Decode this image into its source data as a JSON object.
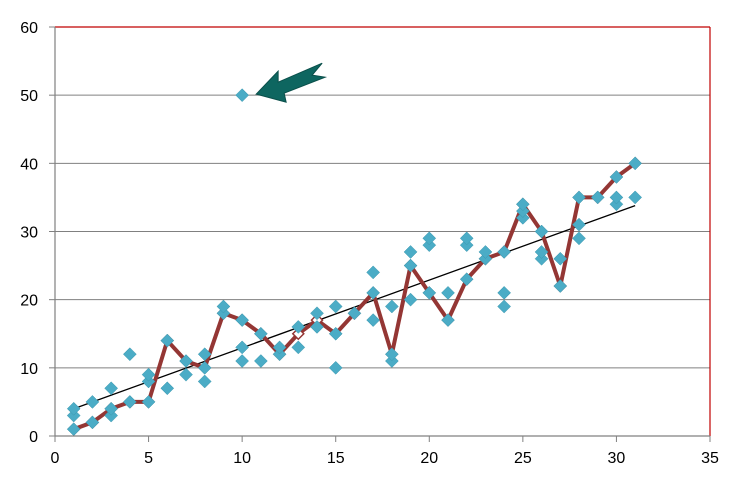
{
  "chart_data": {
    "type": "scatter",
    "title": "",
    "xlabel": "",
    "ylabel": "",
    "xlim": [
      0,
      35
    ],
    "ylim": [
      0,
      60
    ],
    "x_ticks": [
      "0",
      "5",
      "10",
      "15",
      "20",
      "25",
      "30",
      "35"
    ],
    "y_ticks": [
      "0",
      "10",
      "20",
      "30",
      "40",
      "50",
      "60"
    ],
    "grid": "horizontal",
    "series": [
      {
        "marker": "diamond",
        "color": "#4bacc6",
        "points": [
          [
            1,
            1
          ],
          [
            1,
            3
          ],
          [
            1,
            4
          ],
          [
            2,
            2
          ],
          [
            2,
            5
          ],
          [
            3,
            3
          ],
          [
            3,
            4
          ],
          [
            3,
            7
          ],
          [
            4,
            5
          ],
          [
            4,
            12
          ],
          [
            5,
            5
          ],
          [
            5,
            8
          ],
          [
            5,
            9
          ],
          [
            6,
            7
          ],
          [
            6,
            14
          ],
          [
            7,
            9
          ],
          [
            7,
            11
          ],
          [
            8,
            8
          ],
          [
            8,
            10
          ],
          [
            8,
            12
          ],
          [
            9,
            18
          ],
          [
            9,
            19
          ],
          [
            10,
            11
          ],
          [
            10,
            13
          ],
          [
            10,
            17
          ],
          [
            10,
            50
          ],
          [
            11,
            11
          ],
          [
            11,
            15
          ],
          [
            12,
            12
          ],
          [
            12,
            13
          ],
          [
            13,
            13
          ],
          [
            13,
            16
          ],
          [
            14,
            16
          ],
          [
            14,
            18
          ],
          [
            15,
            10
          ],
          [
            15,
            15
          ],
          [
            15,
            19
          ],
          [
            16,
            18
          ],
          [
            17,
            17
          ],
          [
            17,
            21
          ],
          [
            17,
            24
          ],
          [
            18,
            11
          ],
          [
            18,
            12
          ],
          [
            18,
            19
          ],
          [
            19,
            20
          ],
          [
            19,
            25
          ],
          [
            19,
            27
          ],
          [
            20,
            21
          ],
          [
            20,
            28
          ],
          [
            20,
            29
          ],
          [
            21,
            17
          ],
          [
            21,
            21
          ],
          [
            22,
            23
          ],
          [
            22,
            28
          ],
          [
            22,
            29
          ],
          [
            23,
            26
          ],
          [
            23,
            27
          ],
          [
            24,
            19
          ],
          [
            24,
            21
          ],
          [
            24,
            27
          ],
          [
            25,
            32
          ],
          [
            25,
            33
          ],
          [
            25,
            34
          ],
          [
            26,
            26
          ],
          [
            26,
            27
          ],
          [
            26,
            30
          ],
          [
            27,
            22
          ],
          [
            27,
            26
          ],
          [
            28,
            29
          ],
          [
            28,
            31
          ],
          [
            28,
            35
          ],
          [
            29,
            35
          ],
          [
            30,
            34
          ],
          [
            30,
            35
          ],
          [
            30,
            38
          ],
          [
            31,
            35
          ],
          [
            31,
            40
          ]
        ]
      },
      {
        "type": "line",
        "color": "#943634",
        "marker": "diamond",
        "x": [
          1,
          2,
          3,
          4,
          5,
          6,
          7,
          8,
          9,
          10,
          11,
          12,
          13,
          14,
          15,
          16,
          17,
          18,
          19,
          20,
          21,
          22,
          23,
          24,
          25,
          26,
          27,
          28,
          29,
          30,
          31
        ],
        "y": [
          1,
          2,
          4,
          5,
          5,
          14,
          11,
          10,
          18,
          17,
          15,
          12,
          15,
          17,
          15,
          18,
          21,
          12,
          25,
          21,
          17,
          23,
          26,
          27,
          34,
          30,
          22,
          35,
          35,
          38,
          40
        ]
      },
      {
        "type": "trendline",
        "color": "#000000",
        "x": [
          1,
          31
        ],
        "y": [
          4,
          33.8
        ]
      }
    ],
    "annotations": [
      {
        "type": "arrow",
        "color": "#0e6660",
        "points_to": [
          10,
          50
        ]
      }
    ],
    "colors": {
      "plot_border": "#c00000",
      "grid": "#808080",
      "axis": "#808080"
    }
  }
}
